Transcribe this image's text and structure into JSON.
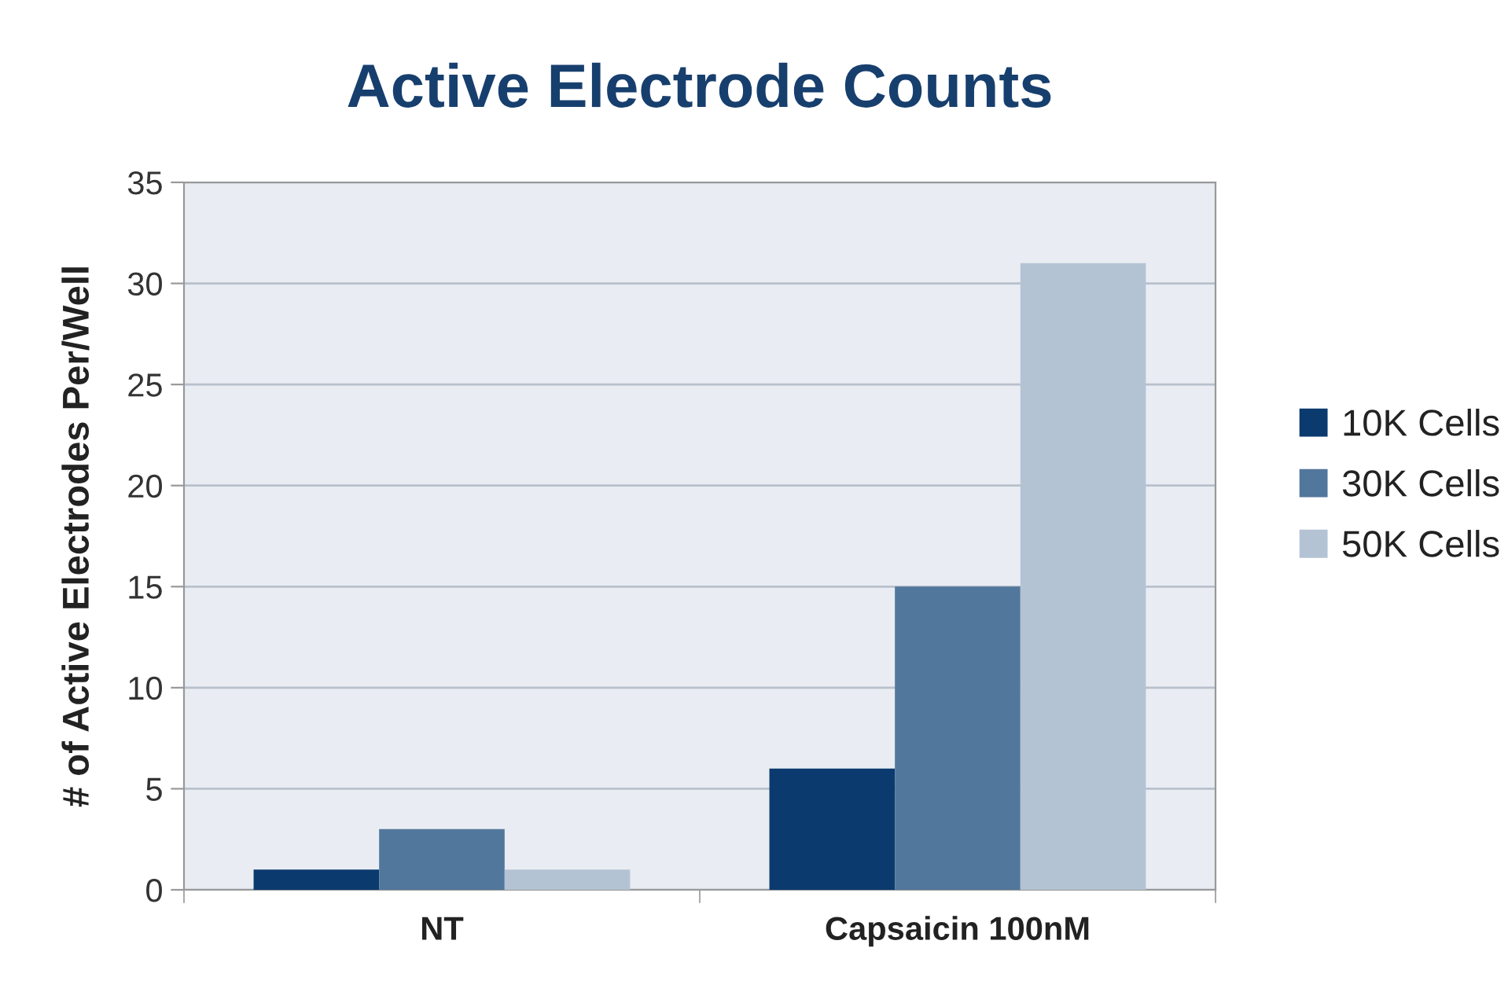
{
  "chart_data": {
    "type": "bar",
    "title": "Active Electrode Counts",
    "ylabel": "# of Active Electrodes Per/Well",
    "categories": [
      "NT",
      "Capsaicin 100nM"
    ],
    "series": [
      {
        "name": "10K Cells",
        "color": "#0b3a6e",
        "values": [
          1,
          6
        ]
      },
      {
        "name": "30K Cells",
        "color": "#52779c",
        "values": [
          3,
          15
        ]
      },
      {
        "name": "50K Cells",
        "color": "#b4c3d4",
        "values": [
          1,
          31
        ]
      }
    ],
    "ylim": [
      0,
      35
    ],
    "yticks": [
      0,
      5,
      10,
      15,
      20,
      25,
      30,
      35
    ],
    "grid": "y",
    "legend": "right"
  }
}
